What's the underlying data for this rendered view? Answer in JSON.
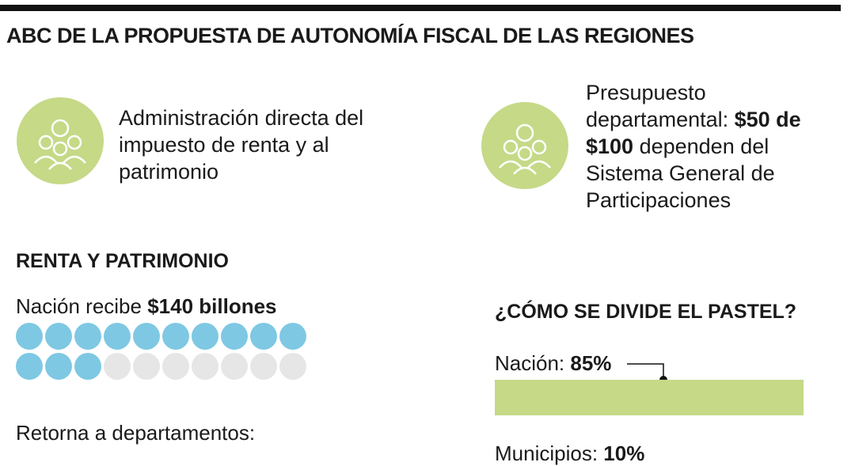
{
  "header": {
    "title": "ABC DE LA PROPUESTA DE AUTONOMÍA FISCAL DE LAS REGIONES"
  },
  "points": [
    {
      "text": "Administración directa del impuesto de renta y al patrimonio"
    },
    {
      "text_before": "Presupuesto departamental: ",
      "text_bold": "$50 de $100",
      "text_after": " dependen del Sistema General de Participaciones"
    }
  ],
  "renta": {
    "title": "RENTA Y PATRIMONIO",
    "receives_label": "Nación recibe ",
    "receives_value": "$140 billones",
    "dots": {
      "filled": 13,
      "total": 20
    },
    "returns_label": "Retorna a departamentos:"
  },
  "pastel": {
    "title": "¿CÓMO SE DIVIDE EL PASTEL?",
    "nacion_label": "Nación: ",
    "nacion_value": "85%",
    "municipios_label": "Municipios: ",
    "municipios_value": "10%"
  }
}
